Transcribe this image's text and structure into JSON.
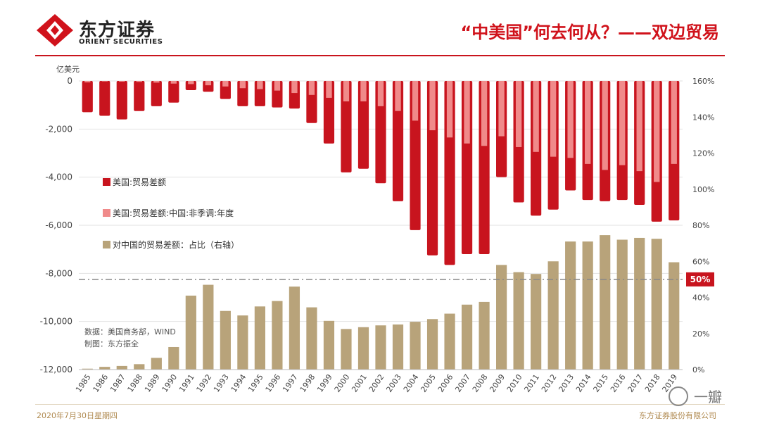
{
  "header": {
    "company_cn": "东方证券",
    "company_en": "ORIENT SECURITIES",
    "title": "“中美国”何去何从？——双边贸易"
  },
  "chart_data": {
    "type": "bar",
    "title": "“中美国”何去何从？——双边贸易",
    "left_axis": {
      "unit": "亿美元",
      "min": -12000,
      "max": 0,
      "ticks": [
        0,
        -2000,
        -4000,
        -6000,
        -8000,
        -10000,
        -12000
      ],
      "tick_labels": [
        "0",
        "-2,000",
        "-4,000",
        "-6,000",
        "-8,000",
        "-10,000",
        "-12,000"
      ]
    },
    "right_axis": {
      "min": 0,
      "max": 160,
      "ticks": [
        160,
        140,
        120,
        100,
        80,
        60,
        40,
        20,
        0
      ],
      "tick_labels": [
        "160%",
        "140%",
        "120%",
        "100%",
        "80%",
        "60%",
        "40%",
        "20%",
        "0%"
      ]
    },
    "categories": [
      "1985",
      "1986",
      "1987",
      "1988",
      "1989",
      "1990",
      "1991",
      "1992",
      "1993",
      "1994",
      "1995",
      "1996",
      "1997",
      "1998",
      "1999",
      "2000",
      "2001",
      "2002",
      "2003",
      "2004",
      "2005",
      "2006",
      "2007",
      "2008",
      "2009",
      "2010",
      "2011",
      "2012",
      "2013",
      "2014",
      "2015",
      "2016",
      "2017",
      "2018",
      "2019"
    ],
    "series": [
      {
        "name": "美国:贸易差额",
        "axis": "left",
        "color": "#c8141e",
        "values": [
          -1300,
          -1450,
          -1600,
          -1250,
          -1050,
          -900,
          -380,
          -450,
          -750,
          -1050,
          -1050,
          -1100,
          -1150,
          -1750,
          -2600,
          -3800,
          -3650,
          -4250,
          -5000,
          -6200,
          -7250,
          -7650,
          -7200,
          -7200,
          -4000,
          -5050,
          -5600,
          -5350,
          -4550,
          -4950,
          -5000,
          -4950,
          -5150,
          -5850,
          -5800
        ]
      },
      {
        "name": "美国:贸易差额:中国:非季调:年度",
        "axis": "left",
        "color": "#f08a8a",
        "values": [
          -60,
          -20,
          -30,
          -40,
          -70,
          -110,
          -130,
          -180,
          -230,
          -300,
          -340,
          -400,
          -500,
          -580,
          -700,
          -850,
          -850,
          -1050,
          -1250,
          -1650,
          -2050,
          -2350,
          -2600,
          -2700,
          -2300,
          -2750,
          -2950,
          -3150,
          -3200,
          -3450,
          -3700,
          -3500,
          -3750,
          -4200,
          -3450
        ]
      },
      {
        "name": "对中国的贸易差额：占比（右轴）",
        "axis": "right",
        "color": "#b8a37a",
        "values": [
          0.5,
          1.5,
          2,
          3,
          6.5,
          12.5,
          41,
          47,
          32.5,
          30,
          35,
          38,
          46,
          34.5,
          27,
          22.5,
          23.5,
          24.5,
          25,
          26.5,
          28,
          31,
          36,
          37.5,
          58,
          54,
          53,
          60,
          71,
          71,
          74.5,
          72,
          73,
          72.5,
          59.5
        ]
      }
    ],
    "reference_line": {
      "value": 50,
      "axis": "right",
      "label": "50%"
    },
    "legend": [
      {
        "label": "美国:贸易差额",
        "color": "#c8141e"
      },
      {
        "label": "美国:贸易差额:中国:非季调:年度",
        "color": "#f08a8a"
      },
      {
        "label": "对中国的贸易差额：占比（右轴）",
        "color": "#b8a37a"
      }
    ]
  },
  "source": {
    "line1": "数据：美国商务部，WIND",
    "line2": "制图：东方振全"
  },
  "footer": {
    "date": "2020年7月30日星期四",
    "company": "东方证券股份有限公司"
  },
  "watermark": "一瓣"
}
